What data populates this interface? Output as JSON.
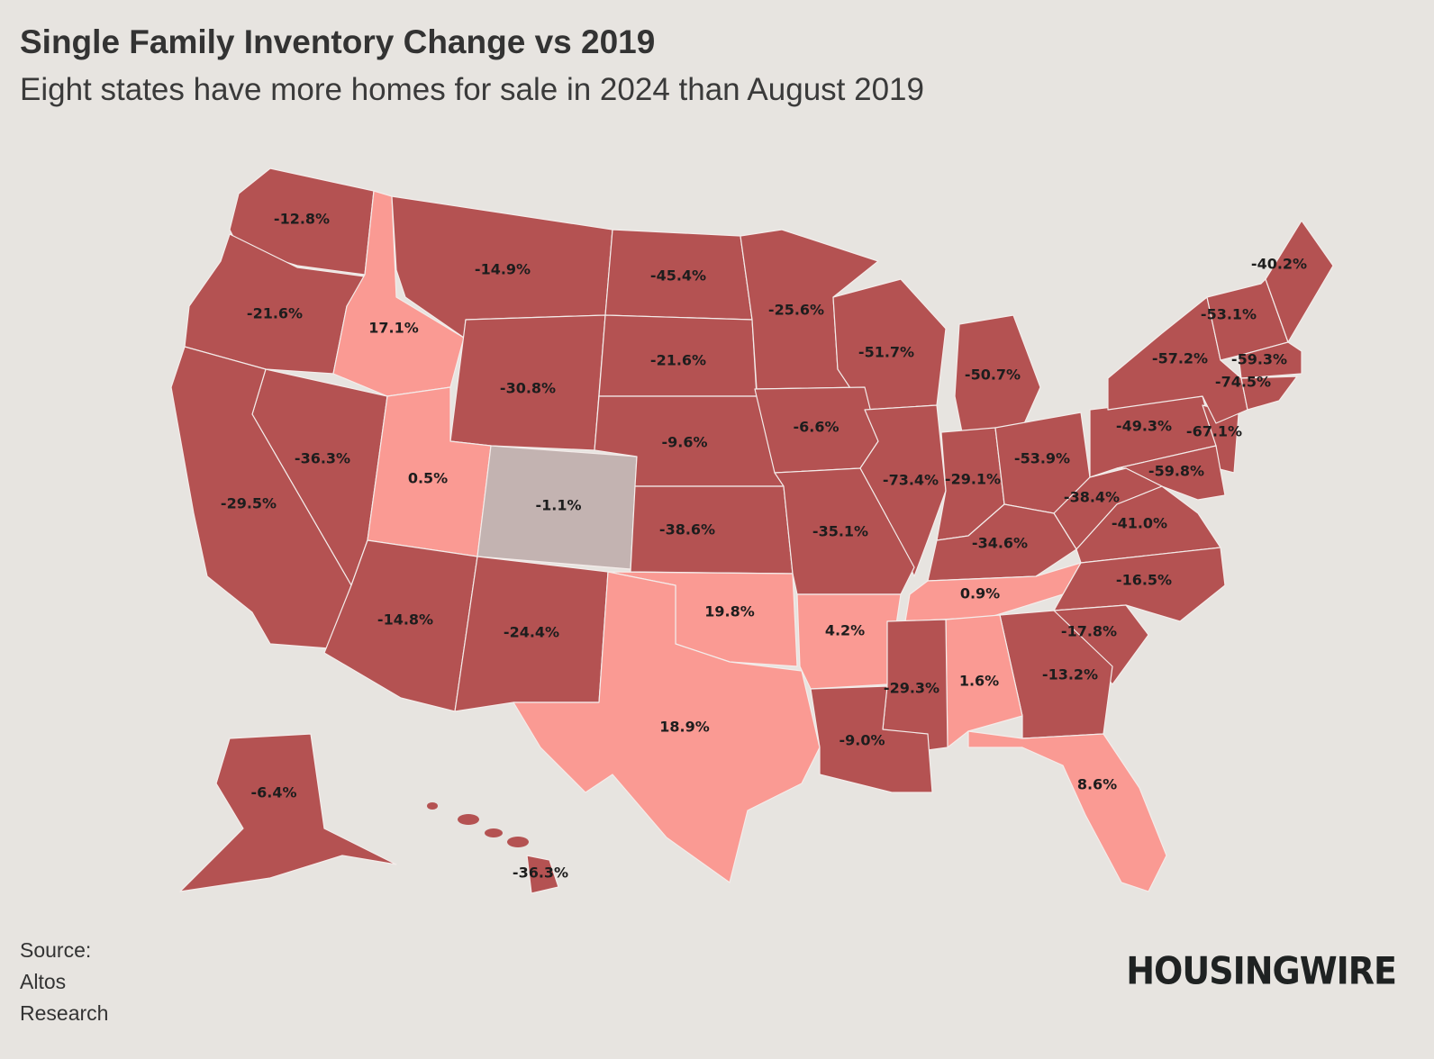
{
  "header": {
    "title": "Single Family Inventory Change vs 2019",
    "subtitle": "Eight states have more homes for sale in 2024 than August 2019"
  },
  "footer": {
    "source_label": "Source:",
    "source_line1": "Altos",
    "source_line2": "Research",
    "logo": "HOUSINGWIRE"
  },
  "colors": {
    "decline": "#b45252",
    "increase": "#fa9a93",
    "slight_decline": "#c3b3b1",
    "background": "#e7e4e0"
  },
  "chart_data": {
    "type": "choropleth",
    "title": "Single Family Inventory Change vs 2019",
    "subtitle": "Eight states have more homes for sale in 2024 than August 2019",
    "states": [
      {
        "state": "WA",
        "value": -12.8,
        "label": "-12.8%",
        "tier": "decline"
      },
      {
        "state": "OR",
        "value": -21.6,
        "label": "-21.6%",
        "tier": "decline"
      },
      {
        "state": "ID",
        "value": 17.1,
        "label": "17.1%",
        "tier": "increase"
      },
      {
        "state": "MT",
        "value": -14.9,
        "label": "-14.9%",
        "tier": "decline"
      },
      {
        "state": "ND",
        "value": -45.4,
        "label": "-45.4%",
        "tier": "decline"
      },
      {
        "state": "WY",
        "value": -30.8,
        "label": "-30.8%",
        "tier": "decline"
      },
      {
        "state": "SD",
        "value": -21.6,
        "label": "-21.6%",
        "tier": "decline"
      },
      {
        "state": "MN",
        "value": -25.6,
        "label": "-25.6%",
        "tier": "decline"
      },
      {
        "state": "WI",
        "value": -51.7,
        "label": "-51.7%",
        "tier": "decline"
      },
      {
        "state": "MI",
        "value": -50.7,
        "label": "-50.7%",
        "tier": "decline"
      },
      {
        "state": "NV",
        "value": -36.3,
        "label": "-36.3%",
        "tier": "decline"
      },
      {
        "state": "UT",
        "value": 0.5,
        "label": "0.5%",
        "tier": "increase"
      },
      {
        "state": "CO",
        "value": -1.1,
        "label": "-1.1%",
        "tier": "slight_decline"
      },
      {
        "state": "NE",
        "value": -9.6,
        "label": "-9.6%",
        "tier": "decline"
      },
      {
        "state": "IA",
        "value": -6.6,
        "label": "-6.6%",
        "tier": "decline"
      },
      {
        "state": "IL",
        "value": -73.4,
        "label": "-73.4%",
        "tier": "decline"
      },
      {
        "state": "IN",
        "value": -29.1,
        "label": "-29.1%",
        "tier": "decline"
      },
      {
        "state": "OH",
        "value": -53.9,
        "label": "-53.9%",
        "tier": "decline"
      },
      {
        "state": "PA",
        "value": -49.3,
        "label": "-49.3%",
        "tier": "decline"
      },
      {
        "state": "NJ",
        "value": -67.1,
        "label": "-67.1%",
        "tier": "decline"
      },
      {
        "state": "NY",
        "value": -57.2,
        "label": "-57.2%",
        "tier": "decline"
      },
      {
        "state": "VT",
        "value": -53.1,
        "label": "-53.1%",
        "tier": "decline"
      },
      {
        "state": "ME",
        "value": -40.2,
        "label": "-40.2%",
        "tier": "decline"
      },
      {
        "state": "MA",
        "value": -59.3,
        "label": "-59.3%",
        "tier": "decline"
      },
      {
        "state": "CT",
        "value": -74.5,
        "label": "-74.5%",
        "tier": "decline"
      },
      {
        "state": "MD",
        "value": -59.8,
        "label": "-59.8%",
        "tier": "decline"
      },
      {
        "state": "WV",
        "value": -38.4,
        "label": "-38.4%",
        "tier": "decline"
      },
      {
        "state": "VA",
        "value": -41.0,
        "label": "-41.0%",
        "tier": "decline"
      },
      {
        "state": "KY",
        "value": -34.6,
        "label": "-34.6%",
        "tier": "decline"
      },
      {
        "state": "CA",
        "value": -29.5,
        "label": "-29.5%",
        "tier": "decline"
      },
      {
        "state": "KS",
        "value": -38.6,
        "label": "-38.6%",
        "tier": "decline"
      },
      {
        "state": "MO",
        "value": -35.1,
        "label": "-35.1%",
        "tier": "decline"
      },
      {
        "state": "AZ",
        "value": -14.8,
        "label": "-14.8%",
        "tier": "decline"
      },
      {
        "state": "NM",
        "value": -24.4,
        "label": "-24.4%",
        "tier": "decline"
      },
      {
        "state": "OK",
        "value": 19.8,
        "label": "19.8%",
        "tier": "increase"
      },
      {
        "state": "AR",
        "value": 4.2,
        "label": "4.2%",
        "tier": "increase"
      },
      {
        "state": "TN",
        "value": 0.9,
        "label": "0.9%",
        "tier": "increase"
      },
      {
        "state": "NC",
        "value": -16.5,
        "label": "-16.5%",
        "tier": "decline"
      },
      {
        "state": "SC",
        "value": -17.8,
        "label": "-17.8%",
        "tier": "decline"
      },
      {
        "state": "GA",
        "value": -13.2,
        "label": "-13.2%",
        "tier": "decline"
      },
      {
        "state": "AL",
        "value": 1.6,
        "label": "1.6%",
        "tier": "increase"
      },
      {
        "state": "MS",
        "value": -29.3,
        "label": "-29.3%",
        "tier": "decline"
      },
      {
        "state": "LA",
        "value": -9.0,
        "label": "-9.0%",
        "tier": "decline"
      },
      {
        "state": "TX",
        "value": 18.9,
        "label": "18.9%",
        "tier": "increase"
      },
      {
        "state": "FL",
        "value": 8.6,
        "label": "8.6%",
        "tier": "increase"
      },
      {
        "state": "AK",
        "value": -6.4,
        "label": "-6.4%",
        "tier": "decline"
      },
      {
        "state": "HI",
        "value": -36.3,
        "label": "-36.3%",
        "tier": "decline"
      }
    ]
  }
}
